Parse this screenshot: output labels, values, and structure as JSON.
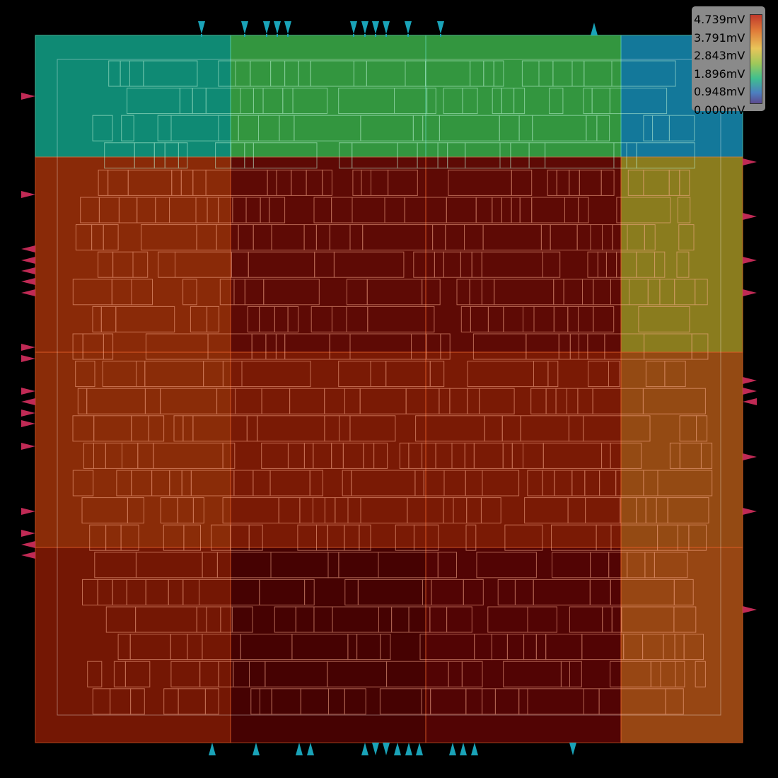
{
  "legend": {
    "labels": [
      "4.739mV",
      "3.791mV",
      "2.843mV",
      "1.896mV",
      "0.948mV",
      "0.000mV"
    ]
  },
  "heatmap": {
    "cols": 4,
    "rows": 4,
    "cells": [
      [
        "#0f8a74",
        "#33963f",
        "#33963f",
        "#13789a"
      ],
      [
        "#8a2a08",
        "#5e0a05",
        "#5e0a05",
        "#8a7c1e"
      ],
      [
        "#8a2c08",
        "#7a1a05",
        "#7a1a05",
        "#944a13"
      ],
      [
        "#741704",
        "#460202",
        "#520404",
        "#974613"
      ]
    ],
    "voltages_mV": [
      [
        1.1,
        1.6,
        1.6,
        0.9
      ],
      [
        4.0,
        4.6,
        4.6,
        2.7
      ],
      [
        4.0,
        4.3,
        4.3,
        3.6
      ],
      [
        4.3,
        4.739,
        4.7,
        3.6
      ]
    ]
  },
  "pins": {
    "color_edge": "#1aa3b8",
    "color_side": "#c02a55"
  }
}
